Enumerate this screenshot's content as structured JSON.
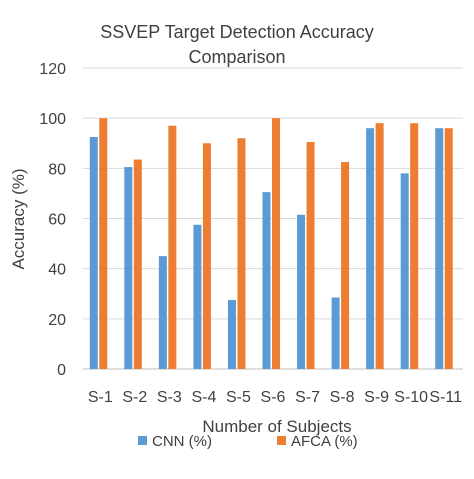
{
  "chart_data": {
    "type": "bar",
    "title_line1": "SSVEP Target Detection Accuracy",
    "title_line2": "Comparison",
    "xlabel": "Number of Subjects",
    "ylabel": "Accuracy (%)",
    "ylim": [
      0,
      120
    ],
    "yticks": [
      0,
      20,
      40,
      60,
      80,
      100,
      120
    ],
    "grid": true,
    "legend_position": "bottom",
    "categories": [
      "S-1",
      "S-2",
      "S-3",
      "S-4",
      "S-5",
      "S-6",
      "S-7",
      "S-8",
      "S-9",
      "S-10",
      "S-11"
    ],
    "series": [
      {
        "name": "CNN (%)",
        "color": "#5B9BD5",
        "values": [
          92.5,
          80.5,
          45,
          57.5,
          27.5,
          70.5,
          61.5,
          28.5,
          96,
          78,
          96
        ]
      },
      {
        "name": "AFCA (%)",
        "color": "#ED7D31",
        "values": [
          100,
          83.5,
          97,
          90,
          92,
          100,
          90.5,
          82.5,
          98,
          98,
          96
        ]
      }
    ]
  }
}
